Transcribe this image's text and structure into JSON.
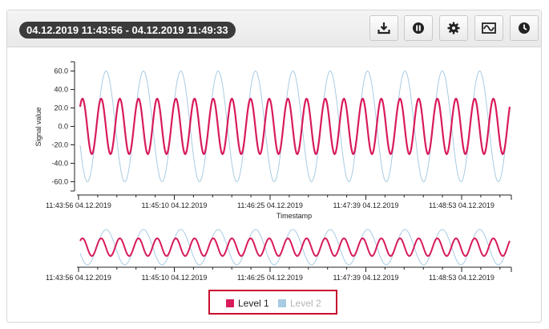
{
  "header": {
    "time_range": "04.12.2019 11:43:56 - 04.12.2019 11:49:33",
    "buttons": [
      {
        "name": "download",
        "icon": "download-icon"
      },
      {
        "name": "pause",
        "icon": "pause-icon"
      },
      {
        "name": "settings",
        "icon": "gear-icon"
      },
      {
        "name": "signal",
        "icon": "waveform-icon"
      },
      {
        "name": "time",
        "icon": "clock-icon"
      }
    ]
  },
  "colors": {
    "level1": "#d81b5c",
    "level2": "#a8cbe3"
  },
  "chart_data": {
    "type": "line",
    "xlabel": "Timestamp",
    "ylabel": "Signal value",
    "ylim": [
      -70,
      70
    ],
    "yticks": [
      "60.0",
      "40.0",
      "20.0",
      "0.0",
      "-20.0",
      "-40.0",
      "-60.0"
    ],
    "ytick_values": [
      60,
      40,
      20,
      0,
      -20,
      -40,
      -60
    ],
    "xticks": [
      "11:43:56 04.12.2019",
      "11:45:10 04.12.2019",
      "11:46:25 04.12.2019",
      "11:47:39 04.12.2019",
      "11:48:53 04.12.2019"
    ],
    "x_range": [
      "11:43:56",
      "11:49:33"
    ],
    "series": [
      {
        "name": "Level 1",
        "amplitude": 30,
        "cycles": 23,
        "phase_deg": 45,
        "visible": true
      },
      {
        "name": "Level 2",
        "amplitude": 60,
        "cycles": 11.5,
        "phase_deg": 200,
        "visible": false
      }
    ]
  },
  "navigator": {
    "xticks": [
      "11:43:56 04.12.2019",
      "11:45:10 04.12.2019",
      "11:46:25 04.12.2019",
      "11:47:39 04.12.2019",
      "11:48:53 04.12.2019"
    ]
  },
  "legend": {
    "items": [
      {
        "label": "Level 1",
        "active": true
      },
      {
        "label": "Level 2",
        "active": false
      }
    ]
  }
}
